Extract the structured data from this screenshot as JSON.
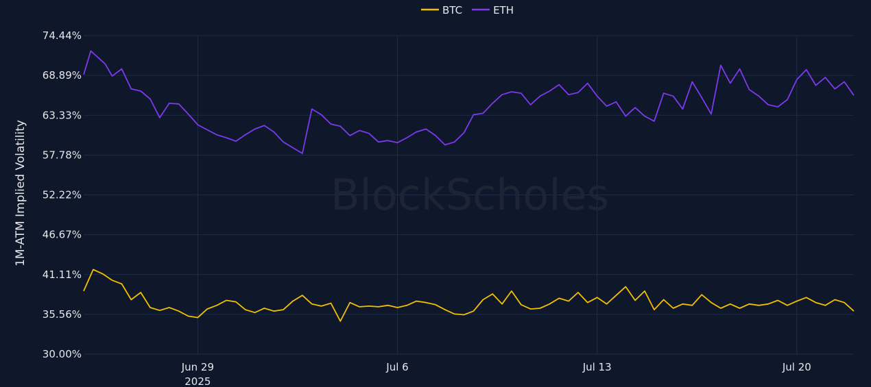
{
  "watermark": "BlockScholes",
  "chart_data": {
    "type": "line",
    "ylabel": "1M-ATM Implied Volatility",
    "ylim": [
      30.0,
      74.44
    ],
    "y_ticks": [
      {
        "value": 74.44,
        "label": "74.44%"
      },
      {
        "value": 68.89,
        "label": "68.89%"
      },
      {
        "value": 63.33,
        "label": "63.33%"
      },
      {
        "value": 57.78,
        "label": "57.78%"
      },
      {
        "value": 52.22,
        "label": "52.22%"
      },
      {
        "value": 46.67,
        "label": "46.67%"
      },
      {
        "value": 41.11,
        "label": "41.11%"
      },
      {
        "value": 35.56,
        "label": "35.56%"
      },
      {
        "value": 30.0,
        "label": "30.00%"
      }
    ],
    "xlim": [
      "2025-06-25",
      "2025-07-22"
    ],
    "x_ticks": [
      {
        "date": "2025-06-29",
        "label": "Jun 29",
        "sublabel": "2025"
      },
      {
        "date": "2025-07-06",
        "label": "Jul 6",
        "sublabel": ""
      },
      {
        "date": "2025-07-13",
        "label": "Jul 13",
        "sublabel": ""
      },
      {
        "date": "2025-07-20",
        "label": "Jul 20",
        "sublabel": ""
      }
    ],
    "legend_position": "top-center",
    "grid": true,
    "series": [
      {
        "name": "BTC",
        "color": "#f2c200",
        "points": [
          [
            "2025-06-25",
            38.8
          ],
          [
            "2025-06-25T08:00",
            41.8
          ],
          [
            "2025-06-25T16:00",
            41.2
          ],
          [
            "2025-06-26",
            40.3
          ],
          [
            "2025-06-26T08:00",
            39.8
          ],
          [
            "2025-06-26T16:00",
            37.6
          ],
          [
            "2025-06-27",
            38.6
          ],
          [
            "2025-06-27T08:00",
            36.5
          ],
          [
            "2025-06-27T16:00",
            36.1
          ],
          [
            "2025-06-28",
            36.5
          ],
          [
            "2025-06-28T08:00",
            36.0
          ],
          [
            "2025-06-28T16:00",
            35.3
          ],
          [
            "2025-06-29",
            35.1
          ],
          [
            "2025-06-29T08:00",
            36.3
          ],
          [
            "2025-06-29T16:00",
            36.8
          ],
          [
            "2025-06-30",
            37.5
          ],
          [
            "2025-06-30T08:00",
            37.3
          ],
          [
            "2025-06-30T16:00",
            36.2
          ],
          [
            "2025-07-01",
            35.8
          ],
          [
            "2025-07-01T08:00",
            36.4
          ],
          [
            "2025-07-01T16:00",
            36.0
          ],
          [
            "2025-07-02",
            36.2
          ],
          [
            "2025-07-02T08:00",
            37.4
          ],
          [
            "2025-07-02T16:00",
            38.2
          ],
          [
            "2025-07-03",
            37.0
          ],
          [
            "2025-07-03T08:00",
            36.7
          ],
          [
            "2025-07-03T16:00",
            37.1
          ],
          [
            "2025-07-04",
            34.6
          ],
          [
            "2025-07-04T08:00",
            37.2
          ],
          [
            "2025-07-04T16:00",
            36.6
          ],
          [
            "2025-07-05",
            36.7
          ],
          [
            "2025-07-05T08:00",
            36.6
          ],
          [
            "2025-07-05T16:00",
            36.8
          ],
          [
            "2025-07-06",
            36.5
          ],
          [
            "2025-07-06T08:00",
            36.8
          ],
          [
            "2025-07-06T16:00",
            37.4
          ],
          [
            "2025-07-07",
            37.2
          ],
          [
            "2025-07-07T08:00",
            36.9
          ],
          [
            "2025-07-07T16:00",
            36.2
          ],
          [
            "2025-07-08",
            35.6
          ],
          [
            "2025-07-08T08:00",
            35.5
          ],
          [
            "2025-07-08T16:00",
            36.0
          ],
          [
            "2025-07-09",
            37.6
          ],
          [
            "2025-07-09T08:00",
            38.4
          ],
          [
            "2025-07-09T16:00",
            37.0
          ],
          [
            "2025-07-10",
            38.8
          ],
          [
            "2025-07-10T08:00",
            36.9
          ],
          [
            "2025-07-10T16:00",
            36.3
          ],
          [
            "2025-07-11",
            36.4
          ],
          [
            "2025-07-11T08:00",
            37.0
          ],
          [
            "2025-07-11T16:00",
            37.8
          ],
          [
            "2025-07-12",
            37.4
          ],
          [
            "2025-07-12T08:00",
            38.6
          ],
          [
            "2025-07-12T16:00",
            37.2
          ],
          [
            "2025-07-13",
            37.9
          ],
          [
            "2025-07-13T08:00",
            37.0
          ],
          [
            "2025-07-13T16:00",
            38.2
          ],
          [
            "2025-07-14",
            39.4
          ],
          [
            "2025-07-14T08:00",
            37.5
          ],
          [
            "2025-07-14T16:00",
            38.8
          ],
          [
            "2025-07-15",
            36.2
          ],
          [
            "2025-07-15T08:00",
            37.6
          ],
          [
            "2025-07-15T16:00",
            36.4
          ],
          [
            "2025-07-16",
            37.0
          ],
          [
            "2025-07-16T08:00",
            36.8
          ],
          [
            "2025-07-16T16:00",
            38.3
          ],
          [
            "2025-07-17",
            37.2
          ],
          [
            "2025-07-17T08:00",
            36.4
          ],
          [
            "2025-07-17T16:00",
            37.0
          ],
          [
            "2025-07-18",
            36.4
          ],
          [
            "2025-07-18T08:00",
            37.0
          ],
          [
            "2025-07-18T16:00",
            36.8
          ],
          [
            "2025-07-19",
            37.0
          ],
          [
            "2025-07-19T08:00",
            37.5
          ],
          [
            "2025-07-19T16:00",
            36.8
          ],
          [
            "2025-07-20",
            37.4
          ],
          [
            "2025-07-20T08:00",
            37.9
          ],
          [
            "2025-07-20T16:00",
            37.2
          ],
          [
            "2025-07-21",
            36.8
          ],
          [
            "2025-07-21T08:00",
            37.6
          ],
          [
            "2025-07-21T16:00",
            37.2
          ],
          [
            "2025-07-22",
            36.0
          ]
        ]
      },
      {
        "name": "ETH",
        "color": "#7c3aed",
        "points": [
          [
            "2025-06-25",
            69.0
          ],
          [
            "2025-06-25T06:00",
            72.3
          ],
          [
            "2025-06-25T12:00",
            71.4
          ],
          [
            "2025-06-25T18:00",
            70.5
          ],
          [
            "2025-06-26",
            68.8
          ],
          [
            "2025-06-26T08:00",
            69.8
          ],
          [
            "2025-06-26T16:00",
            67.0
          ],
          [
            "2025-06-27",
            66.7
          ],
          [
            "2025-06-27T08:00",
            65.6
          ],
          [
            "2025-06-27T16:00",
            63.0
          ],
          [
            "2025-06-28",
            65.0
          ],
          [
            "2025-06-28T08:00",
            64.9
          ],
          [
            "2025-06-28T16:00",
            63.5
          ],
          [
            "2025-06-29",
            62.0
          ],
          [
            "2025-06-29T08:00",
            61.3
          ],
          [
            "2025-06-29T16:00",
            60.6
          ],
          [
            "2025-06-30",
            60.2
          ],
          [
            "2025-06-30T08:00",
            59.7
          ],
          [
            "2025-06-30T16:00",
            60.6
          ],
          [
            "2025-07-01",
            61.4
          ],
          [
            "2025-07-01T08:00",
            61.9
          ],
          [
            "2025-07-01T16:00",
            61.0
          ],
          [
            "2025-07-02",
            59.6
          ],
          [
            "2025-07-02T08:00",
            58.8
          ],
          [
            "2025-07-02T16:00",
            58.0
          ],
          [
            "2025-07-03",
            64.2
          ],
          [
            "2025-07-03T08:00",
            63.4
          ],
          [
            "2025-07-03T16:00",
            62.1
          ],
          [
            "2025-07-04",
            61.8
          ],
          [
            "2025-07-04T08:00",
            60.5
          ],
          [
            "2025-07-04T16:00",
            61.2
          ],
          [
            "2025-07-05",
            60.8
          ],
          [
            "2025-07-05T08:00",
            59.6
          ],
          [
            "2025-07-05T16:00",
            59.8
          ],
          [
            "2025-07-06",
            59.5
          ],
          [
            "2025-07-06T08:00",
            60.2
          ],
          [
            "2025-07-06T16:00",
            61.0
          ],
          [
            "2025-07-07",
            61.4
          ],
          [
            "2025-07-07T08:00",
            60.5
          ],
          [
            "2025-07-07T16:00",
            59.2
          ],
          [
            "2025-07-08",
            59.6
          ],
          [
            "2025-07-08T08:00",
            60.9
          ],
          [
            "2025-07-08T16:00",
            63.4
          ],
          [
            "2025-07-09",
            63.6
          ],
          [
            "2025-07-09T08:00",
            65.0
          ],
          [
            "2025-07-09T16:00",
            66.2
          ],
          [
            "2025-07-10",
            66.6
          ],
          [
            "2025-07-10T08:00",
            66.4
          ],
          [
            "2025-07-10T16:00",
            64.8
          ],
          [
            "2025-07-11",
            66.0
          ],
          [
            "2025-07-11T08:00",
            66.7
          ],
          [
            "2025-07-11T16:00",
            67.6
          ],
          [
            "2025-07-12",
            66.2
          ],
          [
            "2025-07-12T08:00",
            66.5
          ],
          [
            "2025-07-12T16:00",
            67.8
          ],
          [
            "2025-07-13",
            66.0
          ],
          [
            "2025-07-13T08:00",
            64.6
          ],
          [
            "2025-07-13T16:00",
            65.2
          ],
          [
            "2025-07-14",
            63.2
          ],
          [
            "2025-07-14T08:00",
            64.4
          ],
          [
            "2025-07-14T16:00",
            63.2
          ],
          [
            "2025-07-15",
            62.5
          ],
          [
            "2025-07-15T08:00",
            66.4
          ],
          [
            "2025-07-15T16:00",
            66.0
          ],
          [
            "2025-07-16",
            64.2
          ],
          [
            "2025-07-16T08:00",
            68.0
          ],
          [
            "2025-07-16T16:00",
            65.8
          ],
          [
            "2025-07-17",
            63.5
          ],
          [
            "2025-07-17T08:00",
            70.3
          ],
          [
            "2025-07-17T16:00",
            67.8
          ],
          [
            "2025-07-18",
            69.8
          ],
          [
            "2025-07-18T08:00",
            66.9
          ],
          [
            "2025-07-18T16:00",
            66.0
          ],
          [
            "2025-07-19",
            64.8
          ],
          [
            "2025-07-19T08:00",
            64.5
          ],
          [
            "2025-07-19T16:00",
            65.5
          ],
          [
            "2025-07-20",
            68.3
          ],
          [
            "2025-07-20T08:00",
            69.7
          ],
          [
            "2025-07-20T16:00",
            67.5
          ],
          [
            "2025-07-21",
            68.6
          ],
          [
            "2025-07-21T08:00",
            67.0
          ],
          [
            "2025-07-21T16:00",
            68.0
          ],
          [
            "2025-07-22",
            66.1
          ]
        ]
      }
    ]
  }
}
